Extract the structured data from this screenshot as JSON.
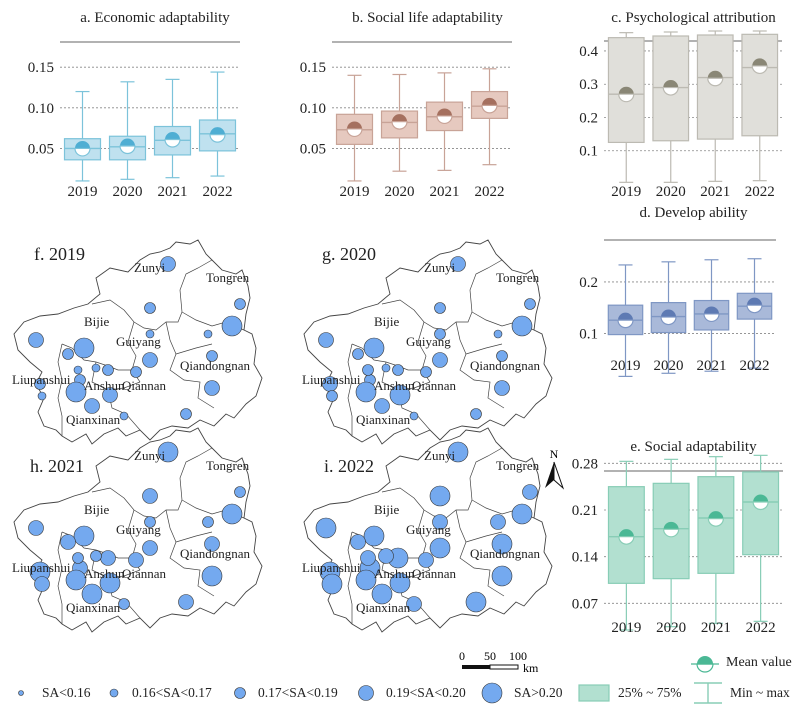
{
  "chart_data": [
    {
      "id": "a",
      "type": "box",
      "title": "a. Economic adaptability",
      "categories": [
        "2019",
        "2020",
        "2021",
        "2022"
      ],
      "ylim": [
        0.005,
        0.165
      ],
      "yticks": [
        0.05,
        0.1,
        0.15
      ],
      "ytick_labels": [
        "0.05",
        "0.10",
        "0.15"
      ],
      "grid": true,
      "colors": {
        "fill": "#bfe1ef",
        "stroke": "#7cc3da",
        "mean": "#4faed3"
      },
      "boxes": [
        {
          "min": 0.01,
          "q1": 0.036,
          "median": 0.05,
          "q3": 0.062,
          "max": 0.12,
          "mean": 0.05
        },
        {
          "min": 0.012,
          "q1": 0.036,
          "median": 0.052,
          "q3": 0.065,
          "max": 0.132,
          "mean": 0.053
        },
        {
          "min": 0.014,
          "q1": 0.042,
          "median": 0.06,
          "q3": 0.077,
          "max": 0.135,
          "mean": 0.061
        },
        {
          "min": 0.016,
          "q1": 0.047,
          "median": 0.068,
          "q3": 0.085,
          "max": 0.144,
          "mean": 0.067
        }
      ]
    },
    {
      "id": "b",
      "type": "box",
      "title": "b. Social life adaptability",
      "categories": [
        "2019",
        "2020",
        "2021",
        "2022"
      ],
      "ylim": [
        0.005,
        0.165
      ],
      "yticks": [
        0.05,
        0.1,
        0.15
      ],
      "ytick_labels": [
        "0.05",
        "0.10",
        "0.15"
      ],
      "grid": true,
      "colors": {
        "fill": "#e6c9bf",
        "stroke": "#c8a397",
        "mean": "#a5705f"
      },
      "boxes": [
        {
          "min": 0.01,
          "q1": 0.055,
          "median": 0.073,
          "q3": 0.092,
          "max": 0.14,
          "mean": 0.074
        },
        {
          "min": 0.022,
          "q1": 0.063,
          "median": 0.082,
          "q3": 0.096,
          "max": 0.141,
          "mean": 0.083
        },
        {
          "min": 0.023,
          "q1": 0.072,
          "median": 0.089,
          "q3": 0.107,
          "max": 0.143,
          "mean": 0.09
        },
        {
          "min": 0.03,
          "q1": 0.087,
          "median": 0.102,
          "q3": 0.12,
          "max": 0.148,
          "mean": 0.103
        }
      ]
    },
    {
      "id": "c",
      "type": "box",
      "title": "c. Psychological attribution",
      "categories": [
        "2019",
        "2020",
        "2021",
        "2022"
      ],
      "ylim": [
        0.0,
        0.46
      ],
      "yticks": [
        0.1,
        0.2,
        0.3,
        0.4
      ],
      "ytick_labels": [
        "0.1",
        "0.2",
        "0.3",
        "0.4"
      ],
      "grid": true,
      "colors": {
        "fill": "#e0dfda",
        "stroke": "#bcbab2",
        "mean": "#8a8776"
      },
      "boxes": [
        {
          "min": 0.005,
          "q1": 0.125,
          "median": 0.27,
          "q3": 0.44,
          "max": 0.455,
          "mean": 0.27
        },
        {
          "min": 0.005,
          "q1": 0.13,
          "median": 0.29,
          "q3": 0.445,
          "max": 0.457,
          "mean": 0.29
        },
        {
          "min": 0.008,
          "q1": 0.135,
          "median": 0.32,
          "q3": 0.448,
          "max": 0.46,
          "mean": 0.318
        },
        {
          "min": 0.01,
          "q1": 0.145,
          "median": 0.35,
          "q3": 0.45,
          "max": 0.46,
          "mean": 0.355
        }
      ]
    },
    {
      "id": "d",
      "type": "box",
      "title": "d. Develop ability",
      "categories": [
        "2019",
        "2020",
        "2021",
        "2022"
      ],
      "ylim": [
        0.01,
        0.26
      ],
      "yticks": [
        0.1,
        0.2
      ],
      "ytick_labels": [
        "0.1",
        "0.2"
      ],
      "grid": true,
      "colors": {
        "fill": "#a9b9d9",
        "stroke": "#7f97c4",
        "mean": "#5e7ab3"
      },
      "boxes": [
        {
          "min": 0.017,
          "q1": 0.098,
          "median": 0.126,
          "q3": 0.155,
          "max": 0.233,
          "mean": 0.126
        },
        {
          "min": 0.023,
          "q1": 0.102,
          "median": 0.133,
          "q3": 0.16,
          "max": 0.239,
          "mean": 0.132
        },
        {
          "min": 0.027,
          "q1": 0.107,
          "median": 0.138,
          "q3": 0.164,
          "max": 0.243,
          "mean": 0.138
        },
        {
          "min": 0.033,
          "q1": 0.128,
          "median": 0.153,
          "q3": 0.178,
          "max": 0.245,
          "mean": 0.155
        }
      ]
    },
    {
      "id": "e",
      "type": "box",
      "title": "e. Social adaptability",
      "categories": [
        "2019",
        "2020",
        "2021",
        "2022"
      ],
      "ylim": [
        0.0,
        0.3
      ],
      "yticks": [
        0.07,
        0.14,
        0.21,
        0.28
      ],
      "ytick_labels": [
        "0.07",
        "0.14",
        "0.21",
        "0.28"
      ],
      "grid": true,
      "colors": {
        "fill": "#b2e0d0",
        "stroke": "#88cdb6",
        "mean": "#4bb895"
      },
      "boxes": [
        {
          "min": 0.03,
          "q1": 0.1,
          "median": 0.17,
          "q3": 0.245,
          "max": 0.283,
          "mean": 0.17
        },
        {
          "min": 0.035,
          "q1": 0.107,
          "median": 0.182,
          "q3": 0.25,
          "max": 0.286,
          "mean": 0.181
        },
        {
          "min": 0.04,
          "q1": 0.115,
          "median": 0.198,
          "q3": 0.26,
          "max": 0.29,
          "mean": 0.197
        },
        {
          "min": 0.043,
          "q1": 0.143,
          "median": 0.222,
          "q3": 0.267,
          "max": 0.292,
          "mean": 0.222
        }
      ]
    }
  ],
  "maps": {
    "panels": [
      {
        "label": "f. 2019"
      },
      {
        "label": "g. 2020"
      },
      {
        "label": "h. 2021"
      },
      {
        "label": "i. 2022"
      }
    ],
    "region_names": [
      "Zunyi",
      "Tongren",
      "Bijie",
      "Guiyang",
      "Qiandongnan",
      "Liupanshui",
      "Anshun",
      "Qiannan",
      "Qianxinan"
    ],
    "sites_by_year": [
      [
        3,
        2,
        2,
        4,
        1,
        4,
        3,
        2,
        2,
        2,
        1,
        1,
        3,
        1,
        2,
        2,
        3,
        2,
        4,
        3,
        2,
        1,
        3,
        1
      ],
      [
        3,
        2,
        2,
        4,
        1,
        4,
        3,
        2,
        2,
        2,
        1,
        2,
        3,
        2,
        2,
        2,
        3,
        3,
        4,
        3,
        2,
        1,
        4,
        2
      ],
      [
        4,
        3,
        2,
        4,
        2,
        4,
        3,
        3,
        3,
        3,
        2,
        2,
        3,
        2,
        3,
        3,
        4,
        4,
        4,
        4,
        3,
        2,
        4,
        3
      ],
      [
        4,
        4,
        3,
        4,
        3,
        4,
        4,
        3,
        4,
        4,
        3,
        3,
        4,
        3,
        4,
        3,
        4,
        4,
        4,
        4,
        4,
        3,
        4,
        4
      ]
    ],
    "scale_bar": {
      "ticks": [
        "0",
        "50",
        "100"
      ],
      "unit": "km"
    },
    "north_label": "N",
    "circle_color": "#74a9ef"
  },
  "legend": {
    "sa_classes": [
      "SA<0.16",
      "0.16<SA<0.17",
      "0.17<SA<0.19",
      "0.19<SA<0.20",
      "SA>0.20"
    ],
    "box_label": "25% ~ 75%",
    "whisker_label": "Min ~ max",
    "mean_label": "Mean value"
  }
}
